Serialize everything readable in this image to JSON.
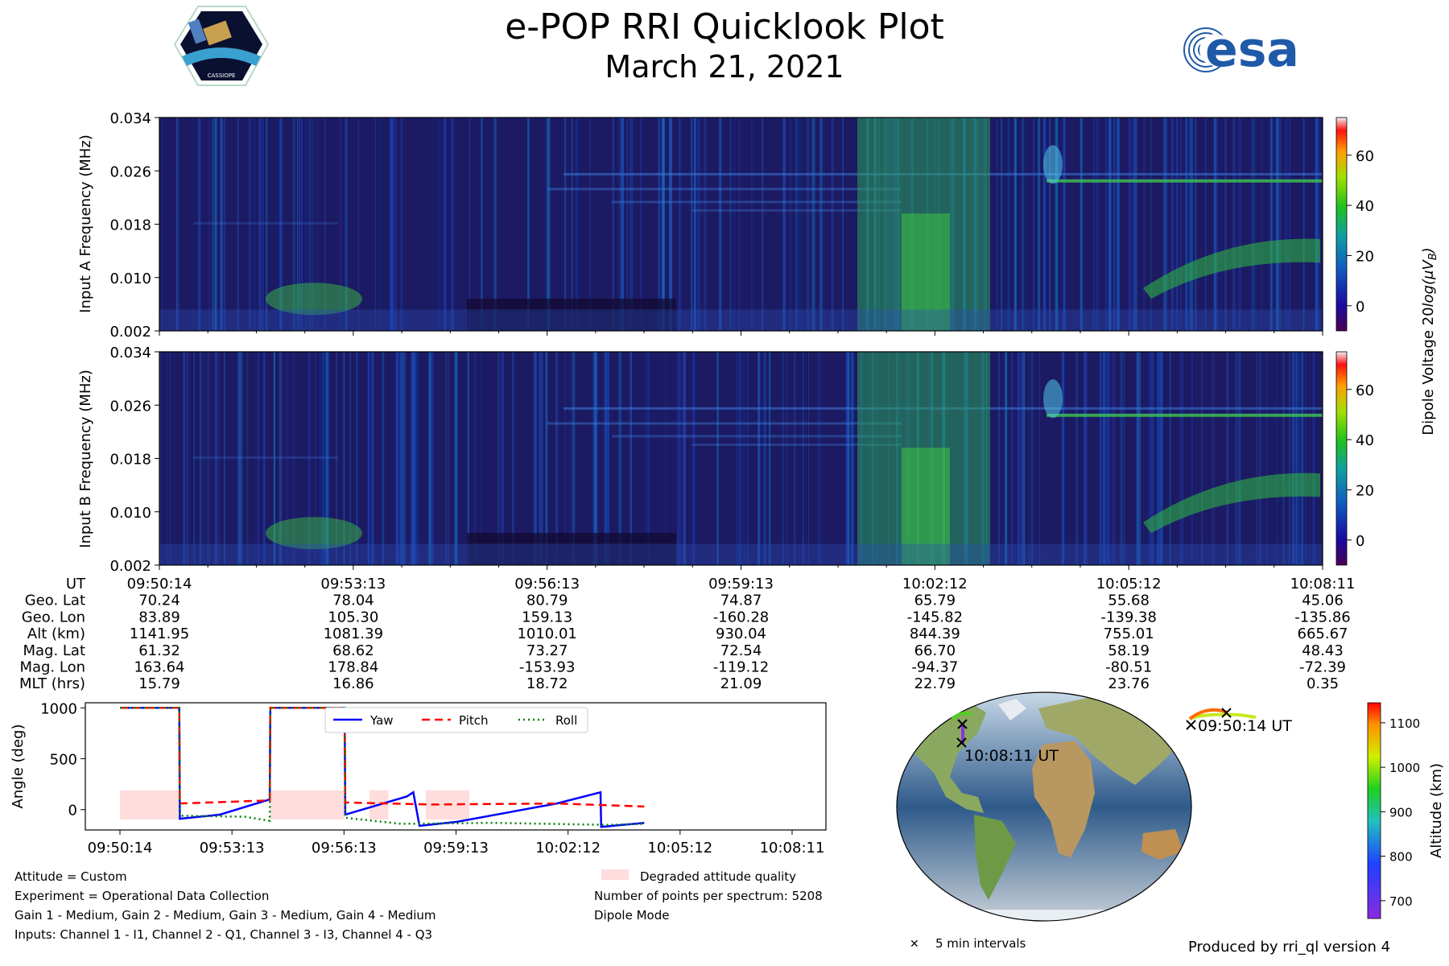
{
  "title": "e-POP RRI Quicklook Plot",
  "subtitle": "March 21, 2021",
  "logos": {
    "left": {
      "name": "cassiope-mission-logo",
      "text": "CASSIOPE"
    },
    "right": {
      "name": "esa-logo",
      "text": "esa"
    }
  },
  "colors": {
    "spectrogram_low": "#1a0033",
    "spectrogram_mid": "#1a3fb0",
    "spectrogram_high": "#3fcf3f",
    "yaw": "#0000ff",
    "pitch": "#ff0000",
    "roll": "#008000",
    "degraded": "#ffdddd"
  },
  "chart_data": [
    {
      "type": "heatmap",
      "ylabel": "Input A Frequency (MHz)",
      "yticks": [
        "0.002",
        "0.010",
        "0.018",
        "0.026",
        "0.034"
      ],
      "ylim": [
        0.002,
        0.034
      ],
      "colorbar": {
        "label": "Dipole Voltage 20log(μV_B)",
        "ticks": [
          0,
          20,
          40,
          60
        ],
        "range": [
          -10,
          75
        ]
      }
    },
    {
      "type": "heatmap",
      "ylabel": "Input B Frequency (MHz)",
      "yticks": [
        "0.002",
        "0.010",
        "0.018",
        "0.026",
        "0.034"
      ],
      "ylim": [
        0.002,
        0.034
      ],
      "colorbar": {
        "label": "Dipole Voltage 20log(μV_B)",
        "ticks": [
          0,
          20,
          40,
          60
        ],
        "range": [
          -10,
          75
        ]
      }
    },
    {
      "type": "table",
      "rows": [
        {
          "label": "UT",
          "values": [
            "09:50:14",
            "09:53:13",
            "09:56:13",
            "09:59:13",
            "10:02:12",
            "10:05:12",
            "10:08:11"
          ]
        },
        {
          "label": "Geo. Lat",
          "values": [
            "70.24",
            "78.04",
            "80.79",
            "74.87",
            "65.79",
            "55.68",
            "45.06"
          ]
        },
        {
          "label": "Geo. Lon",
          "values": [
            "83.89",
            "105.30",
            "159.13",
            "-160.28",
            "-145.82",
            "-139.38",
            "-135.86"
          ]
        },
        {
          "label": "Alt (km)",
          "values": [
            "1141.95",
            "1081.39",
            "1010.01",
            "930.04",
            "844.39",
            "755.01",
            "665.67"
          ]
        },
        {
          "label": "Mag. Lat",
          "values": [
            "61.32",
            "68.62",
            "73.27",
            "72.54",
            "66.70",
            "58.19",
            "48.43"
          ]
        },
        {
          "label": "Mag. Lon",
          "values": [
            "163.64",
            "178.84",
            "-153.93",
            "-119.12",
            "-94.37",
            "-80.51",
            "-72.39"
          ]
        },
        {
          "label": "MLT (hrs)",
          "values": [
            "15.79",
            "16.86",
            "18.72",
            "21.09",
            "22.79",
            "23.76",
            "0.35"
          ]
        }
      ]
    },
    {
      "type": "line",
      "ylabel": "Angle (deg)",
      "ylim": [
        -200,
        1050
      ],
      "yticks": [
        0,
        500,
        1000
      ],
      "xticks": [
        "09:50:14",
        "09:53:13",
        "09:56:13",
        "09:59:13",
        "10:02:12",
        "10:05:12",
        "10:08:11"
      ],
      "xlim": [
        0,
        1077
      ],
      "series": [
        {
          "name": "Yaw",
          "style": "solid",
          "points": [
            [
              0,
              1000
            ],
            [
              95,
              1000
            ],
            [
              96,
              -90
            ],
            [
              160,
              -50
            ],
            [
              240,
              100
            ],
            [
              241,
              1000
            ],
            [
              360,
              1000
            ],
            [
              361,
              -50
            ],
            [
              460,
              130
            ],
            [
              470,
              170
            ],
            [
              480,
              -160
            ],
            [
              540,
              -120
            ],
            [
              700,
              60
            ],
            [
              770,
              170
            ],
            [
              771,
              -170
            ],
            [
              840,
              -130
            ]
          ]
        },
        {
          "name": "Pitch",
          "style": "dashed",
          "points": [
            [
              0,
              1000
            ],
            [
              95,
              1000
            ],
            [
              96,
              60
            ],
            [
              240,
              90
            ],
            [
              241,
              1000
            ],
            [
              360,
              1000
            ],
            [
              361,
              70
            ],
            [
              500,
              50
            ],
            [
              700,
              60
            ],
            [
              840,
              30
            ]
          ]
        },
        {
          "name": "Roll",
          "style": "dotted",
          "points": [
            [
              0,
              1000
            ],
            [
              95,
              1000
            ],
            [
              96,
              -60
            ],
            [
              200,
              -70
            ],
            [
              240,
              -110
            ],
            [
              241,
              1000
            ],
            [
              360,
              1000
            ],
            [
              361,
              -80
            ],
            [
              450,
              -140
            ],
            [
              600,
              -130
            ],
            [
              780,
              -150
            ],
            [
              840,
              -140
            ]
          ]
        }
      ],
      "degraded_regions": [
        [
          0,
          95
        ],
        [
          240,
          360
        ],
        [
          400,
          430
        ],
        [
          490,
          560
        ]
      ],
      "degraded_level": 190
    },
    {
      "type": "scatter",
      "colorbar": {
        "label": "Altitude (km)",
        "ticks": [
          700,
          800,
          900,
          1000,
          1100
        ],
        "range": [
          660,
          1145
        ]
      },
      "annotations": [
        "09:50:14 UT",
        "10:08:11 UT"
      ],
      "legend": "5 min intervals"
    }
  ],
  "notes_left": [
    "Attitude = Custom",
    "Experiment = Operational Data Collection",
    "Gain 1 - Medium, Gain 2 - Medium, Gain 3 - Medium, Gain 4 - Medium",
    "Inputs: Channel 1 - I1, Channel 2 - Q1, Channel 3 - I3, Channel 4 - Q3"
  ],
  "notes_right": {
    "degraded_legend": "Degraded attitude quality",
    "points_per_spectrum": "Number of points per spectrum: 5208",
    "mode": "Dipole Mode"
  },
  "legend_interval": "5 min intervals",
  "footer": "Produced by rri_ql version 4"
}
